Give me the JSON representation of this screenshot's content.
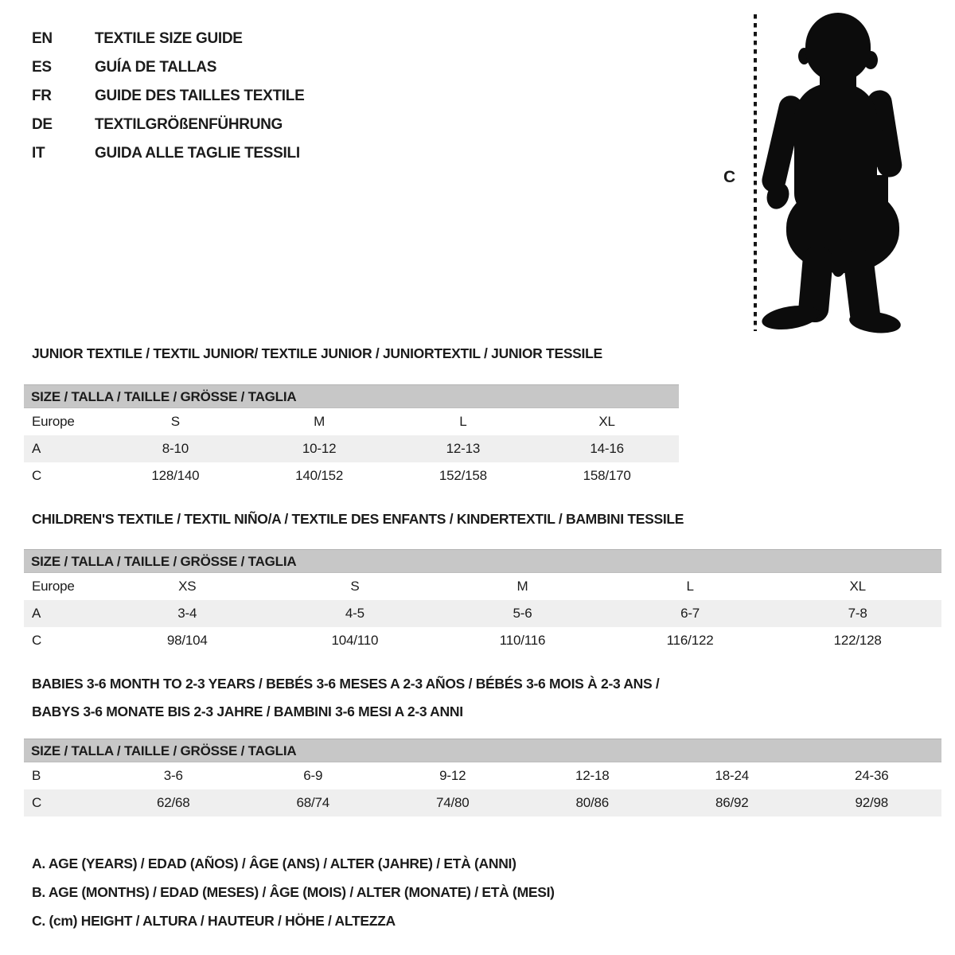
{
  "page": {
    "background": "#ffffff",
    "text_color": "#1b1b1b"
  },
  "colors": {
    "table_header_bg": "#c7c7c7",
    "row_shade_bg": "#efefef",
    "silhouette": "#0c0c0c",
    "dash_line": "#141414"
  },
  "header": {
    "languages": [
      {
        "code": "EN",
        "label": "TEXTILE SIZE GUIDE"
      },
      {
        "code": "ES",
        "label": "GUÍA DE TALLAS"
      },
      {
        "code": "FR",
        "label": "GUIDE DES TAILLES TEXTILE"
      },
      {
        "code": "DE",
        "label": "TEXTILGRÖßENFÜHRUNG"
      },
      {
        "code": "IT",
        "label": "GUIDA ALLE TAGLIE TESSILI"
      }
    ]
  },
  "figure": {
    "label": "C",
    "description": "toddler-silhouette-with-height-dashed-line"
  },
  "sections": [
    {
      "title_lines": [
        "JUNIOR TEXTILE / TEXTIL JUNIOR/ TEXTILE JUNIOR / JUNIORTEXTIL / JUNIOR TESSILE"
      ],
      "table": {
        "header": "SIZE / TALLA / TAILLE / GRÖSSE / TAGLIA",
        "rows": [
          {
            "label": "Europe",
            "shade": false,
            "values": [
              "S",
              "M",
              "L",
              "XL"
            ]
          },
          {
            "label": "A",
            "shade": true,
            "values": [
              "8-10",
              "10-12",
              "12-13",
              "14-16"
            ]
          },
          {
            "label": "C",
            "shade": false,
            "values": [
              "128/140",
              "140/152",
              "152/158",
              "158/170"
            ]
          }
        ]
      }
    },
    {
      "title_lines": [
        "CHILDREN'S TEXTILE / TEXTIL NIÑO/A / TEXTILE DES ENFANTS / KINDERTEXTIL / BAMBINI TESSILE"
      ],
      "table": {
        "header": "SIZE / TALLA / TAILLE / GRÖSSE / TAGLIA",
        "rows": [
          {
            "label": "Europe",
            "shade": false,
            "values": [
              "XS",
              "S",
              "M",
              "L",
              "XL"
            ]
          },
          {
            "label": "A",
            "shade": true,
            "values": [
              "3-4",
              "4-5",
              "5-6",
              "6-7",
              "7-8"
            ]
          },
          {
            "label": "C",
            "shade": false,
            "values": [
              "98/104",
              "104/110",
              "110/116",
              "116/122",
              "122/128"
            ]
          }
        ]
      }
    },
    {
      "title_lines": [
        "BABIES 3-6 MONTH TO 2-3 YEARS / BEBÉS 3-6 MESES A 2-3 AÑOS / BÉBÉS 3-6 MOIS À 2-3 ANS /",
        "BABYS 3-6 MONATE BIS 2-3 JAHRE / BAMBINI 3-6 MESI A 2-3 ANNI"
      ],
      "table": {
        "header": "SIZE / TALLA / TAILLE / GRÖSSE / TAGLIA",
        "rows": [
          {
            "label": "B",
            "shade": false,
            "values": [
              "3-6",
              "6-9",
              "9-12",
              "12-18",
              "18-24",
              "24-36"
            ]
          },
          {
            "label": "C",
            "shade": true,
            "values": [
              "62/68",
              "68/74",
              "74/80",
              "80/86",
              "86/92",
              "92/98"
            ]
          }
        ]
      }
    }
  ],
  "legend": [
    "A. AGE (YEARS) / EDAD (AÑOS) / ÂGE (ANS) / ALTER (JAHRE) / ETÀ (ANNI)",
    "B. AGE (MONTHS) / EDAD (MESES) / ÂGE (MOIS) / ALTER (MONATE) / ETÀ (MESI)",
    "C. (cm) HEIGHT / ALTURA / HAUTEUR / HÖHE / ALTEZZA"
  ]
}
